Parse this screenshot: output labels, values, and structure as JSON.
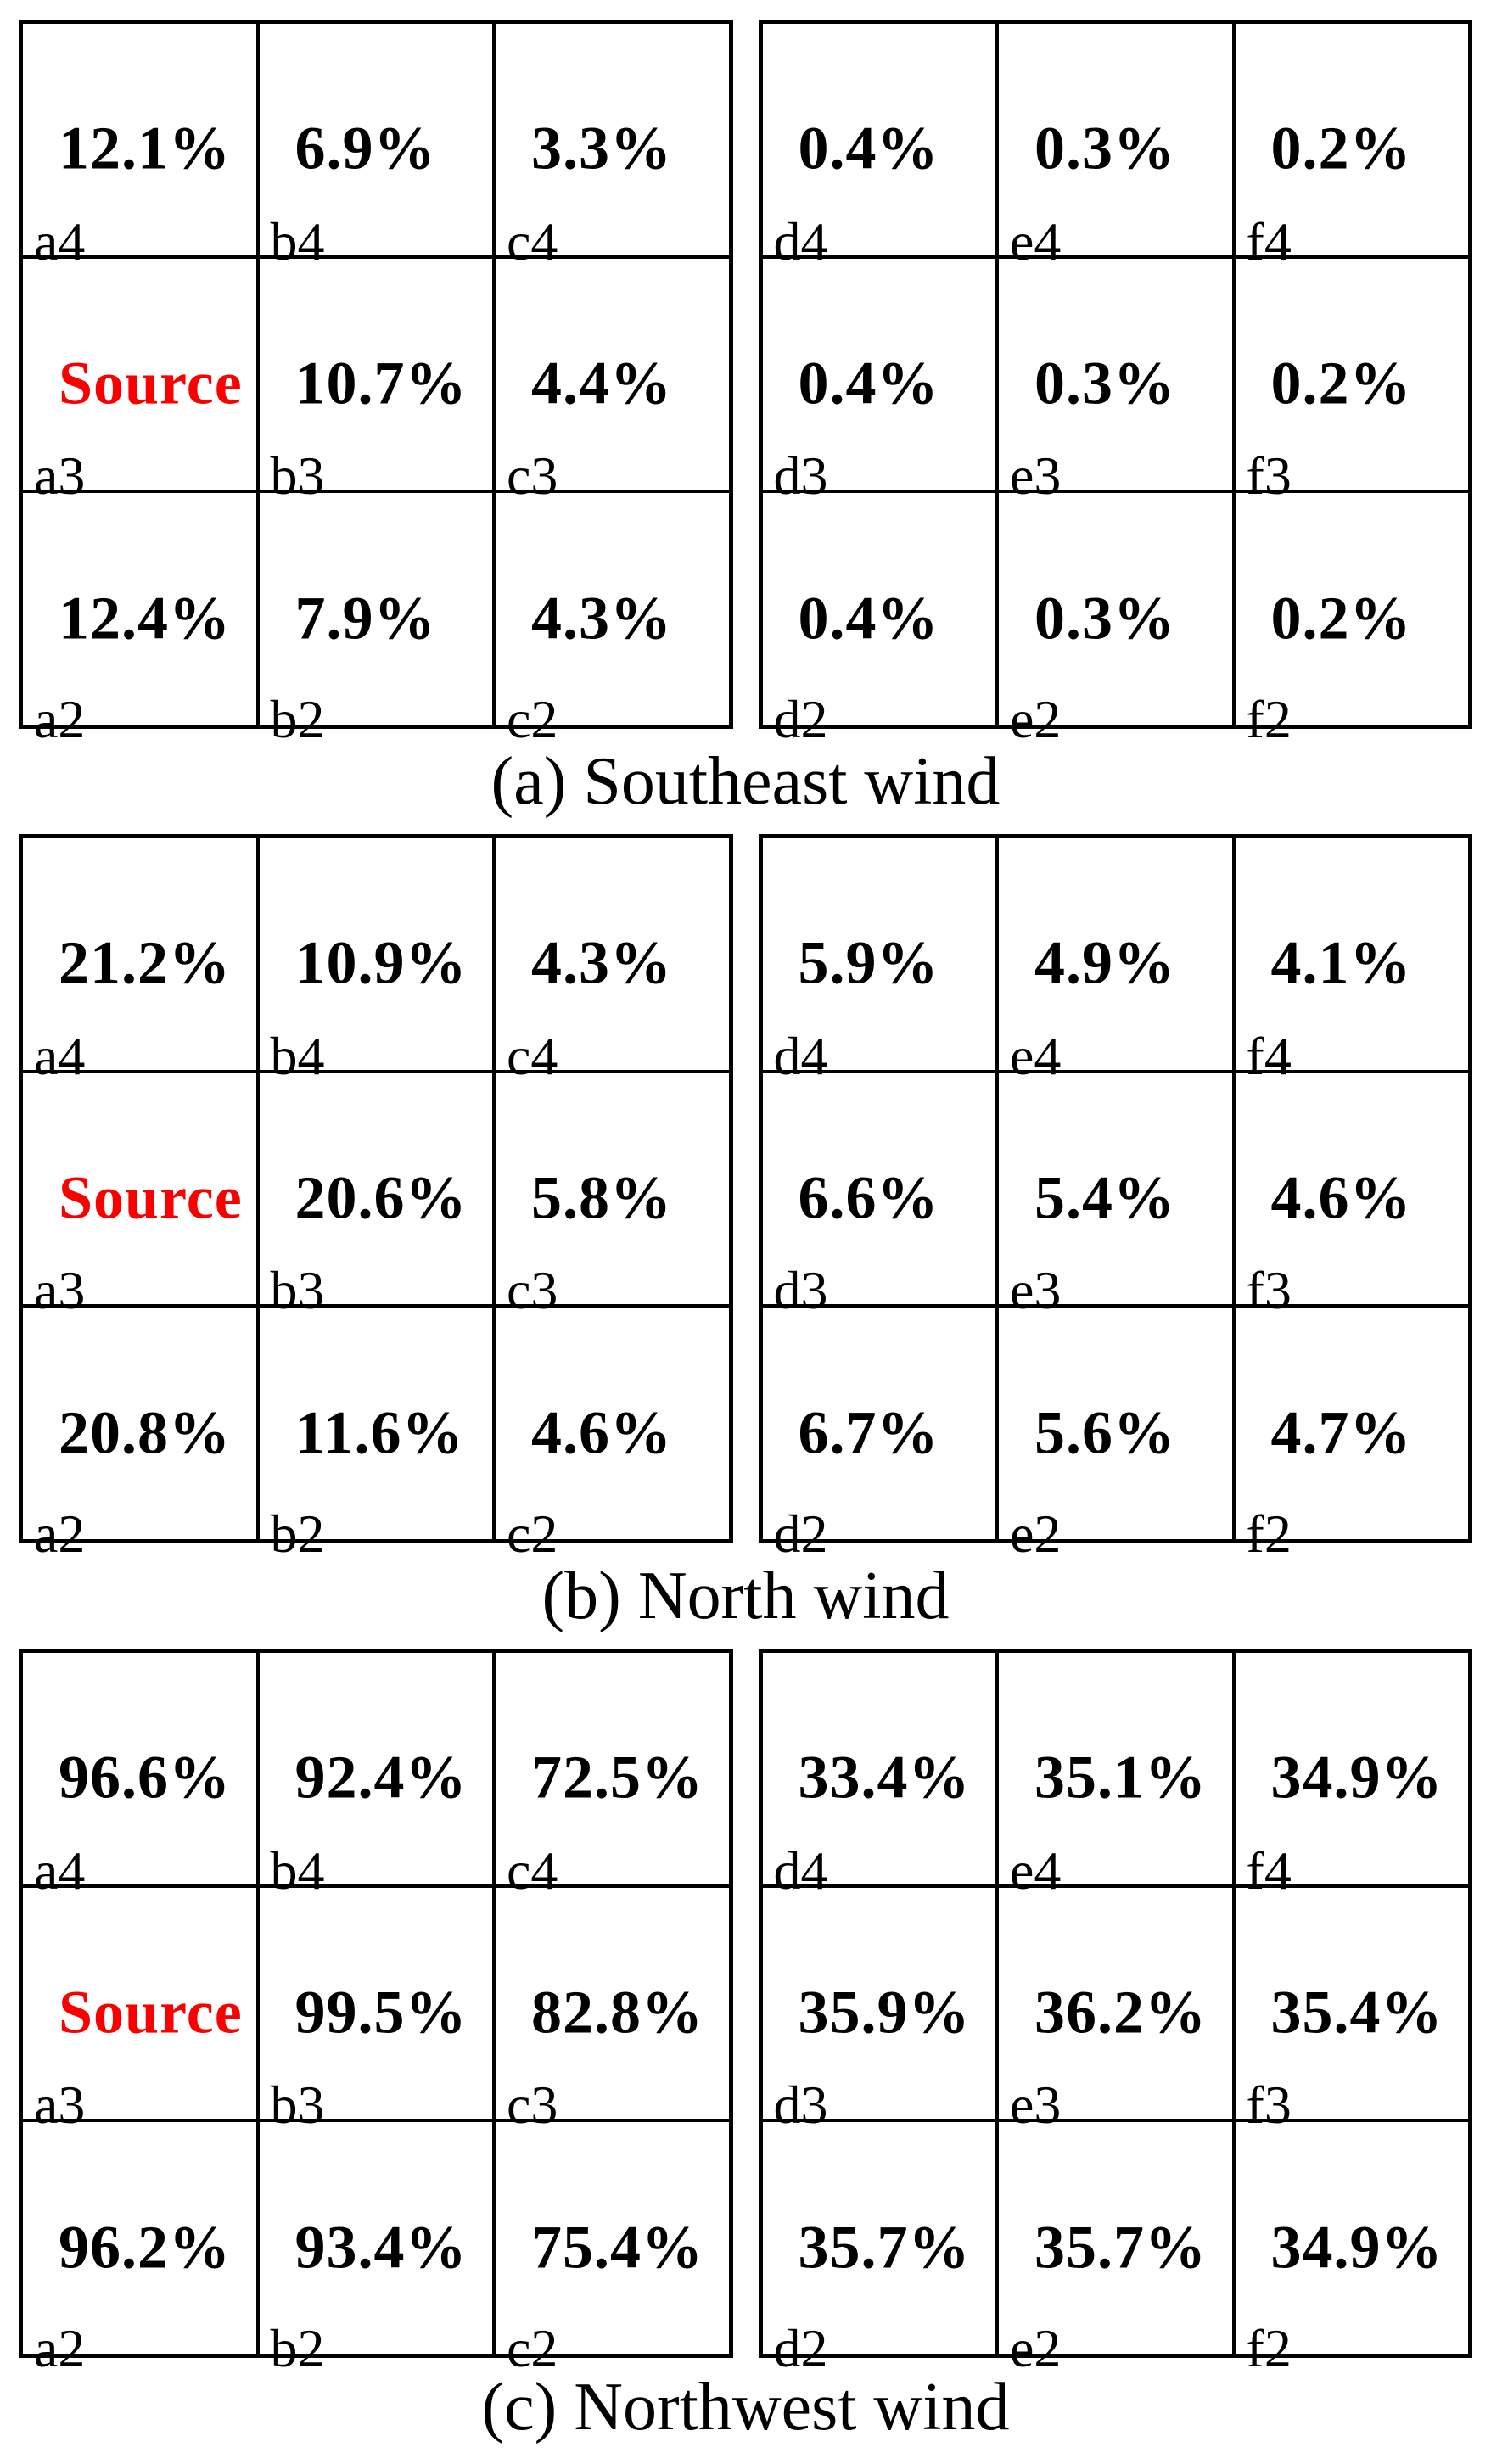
{
  "colors": {
    "source_text": "#fb0000",
    "grid_border": "#000000",
    "value_text": "#000000",
    "background": "#ffffff"
  },
  "source_label": "Source",
  "chart_data": [
    {
      "type": "table",
      "title": "(a) Southeast wind",
      "wind_direction": "Southeast",
      "grids": [
        {
          "position": "left",
          "cell_labels": [
            [
              "a4",
              "b4",
              "c4"
            ],
            [
              "a3",
              "b3",
              "c3"
            ],
            [
              "a2",
              "b2",
              "c2"
            ]
          ],
          "values": [
            [
              "12.1%",
              "6.9%",
              "3.3%"
            ],
            [
              "Source",
              "10.7%",
              "4.4%"
            ],
            [
              "12.4%",
              "7.9%",
              "4.3%"
            ]
          ]
        },
        {
          "position": "right",
          "cell_labels": [
            [
              "d4",
              "e4",
              "f4"
            ],
            [
              "d3",
              "e3",
              "f3"
            ],
            [
              "d2",
              "e2",
              "f2"
            ]
          ],
          "values": [
            [
              "0.4%",
              "0.3%",
              "0.2%"
            ],
            [
              "0.4%",
              "0.3%",
              "0.2%"
            ],
            [
              "0.4%",
              "0.3%",
              "0.2%"
            ]
          ]
        }
      ]
    },
    {
      "type": "table",
      "title": "(b) North wind",
      "wind_direction": "North",
      "grids": [
        {
          "position": "left",
          "cell_labels": [
            [
              "a4",
              "b4",
              "c4"
            ],
            [
              "a3",
              "b3",
              "c3"
            ],
            [
              "a2",
              "b2",
              "c2"
            ]
          ],
          "values": [
            [
              "21.2%",
              "10.9%",
              "4.3%"
            ],
            [
              "Source",
              "20.6%",
              "5.8%"
            ],
            [
              "20.8%",
              "11.6%",
              "4.6%"
            ]
          ]
        },
        {
          "position": "right",
          "cell_labels": [
            [
              "d4",
              "e4",
              "f4"
            ],
            [
              "d3",
              "e3",
              "f3"
            ],
            [
              "d2",
              "e2",
              "f2"
            ]
          ],
          "values": [
            [
              "5.9%",
              "4.9%",
              "4.1%"
            ],
            [
              "6.6%",
              "5.4%",
              "4.6%"
            ],
            [
              "6.7%",
              "5.6%",
              "4.7%"
            ]
          ]
        }
      ]
    },
    {
      "type": "table",
      "title": "(c) Northwest wind",
      "wind_direction": "Northwest",
      "grids": [
        {
          "position": "left",
          "cell_labels": [
            [
              "a4",
              "b4",
              "c4"
            ],
            [
              "a3",
              "b3",
              "c3"
            ],
            [
              "a2",
              "b2",
              "c2"
            ]
          ],
          "values": [
            [
              "96.6%",
              "92.4%",
              "72.5%"
            ],
            [
              "Source",
              "99.5%",
              "82.8%"
            ],
            [
              "96.2%",
              "93.4%",
              "75.4%"
            ]
          ]
        },
        {
          "position": "right",
          "cell_labels": [
            [
              "d4",
              "e4",
              "f4"
            ],
            [
              "d3",
              "e3",
              "f3"
            ],
            [
              "d2",
              "e2",
              "f2"
            ]
          ],
          "values": [
            [
              "33.4%",
              "35.1%",
              "34.9%"
            ],
            [
              "35.9%",
              "36.2%",
              "35.4%"
            ],
            [
              "35.7%",
              "35.7%",
              "34.9%"
            ]
          ]
        }
      ]
    }
  ]
}
